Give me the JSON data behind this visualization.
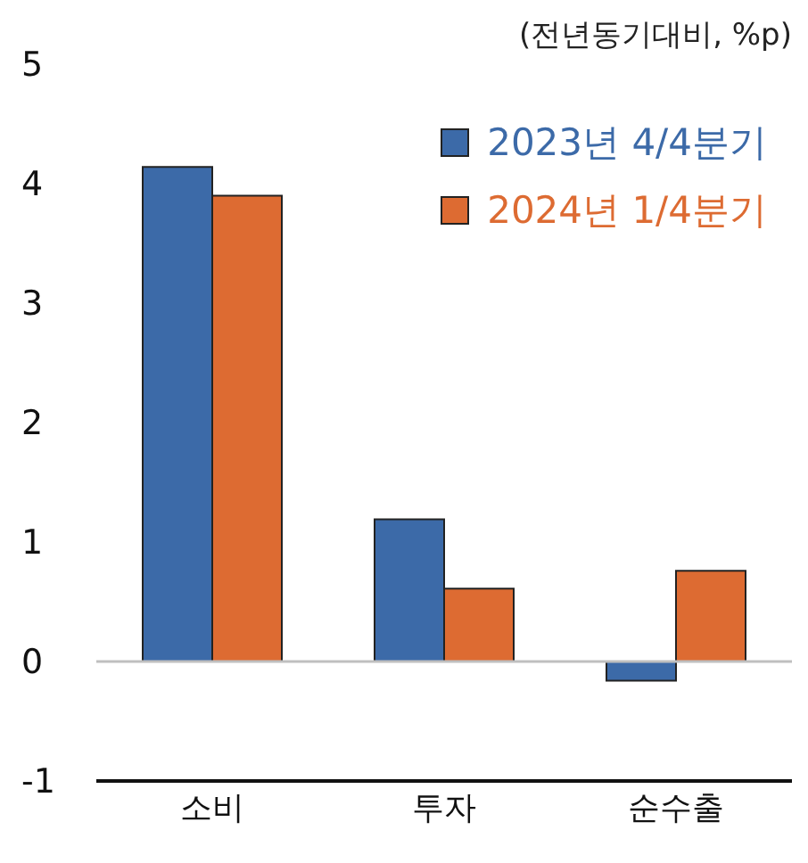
{
  "chart_data": {
    "type": "bar",
    "categories": [
      "소비",
      "투자",
      "순수출"
    ],
    "series": [
      {
        "name": "2023년 4/4분기",
        "color": "#3c6aa8",
        "values": [
          4.14,
          1.19,
          -0.16
        ]
      },
      {
        "name": "2024년 1/4분기",
        "color": "#dd6b32",
        "values": [
          3.9,
          0.61,
          0.76
        ]
      }
    ],
    "ylim": [
      -1,
      5
    ],
    "yticks": [
      -1,
      0,
      1,
      2,
      3,
      4,
      5
    ],
    "grid": false,
    "legend": "top right",
    "ref_lines": [
      {
        "axis": "y",
        "value": 0,
        "color": "#bfbfbf"
      }
    ],
    "annotations": [
      "(전년동기대비, %p)"
    ]
  }
}
